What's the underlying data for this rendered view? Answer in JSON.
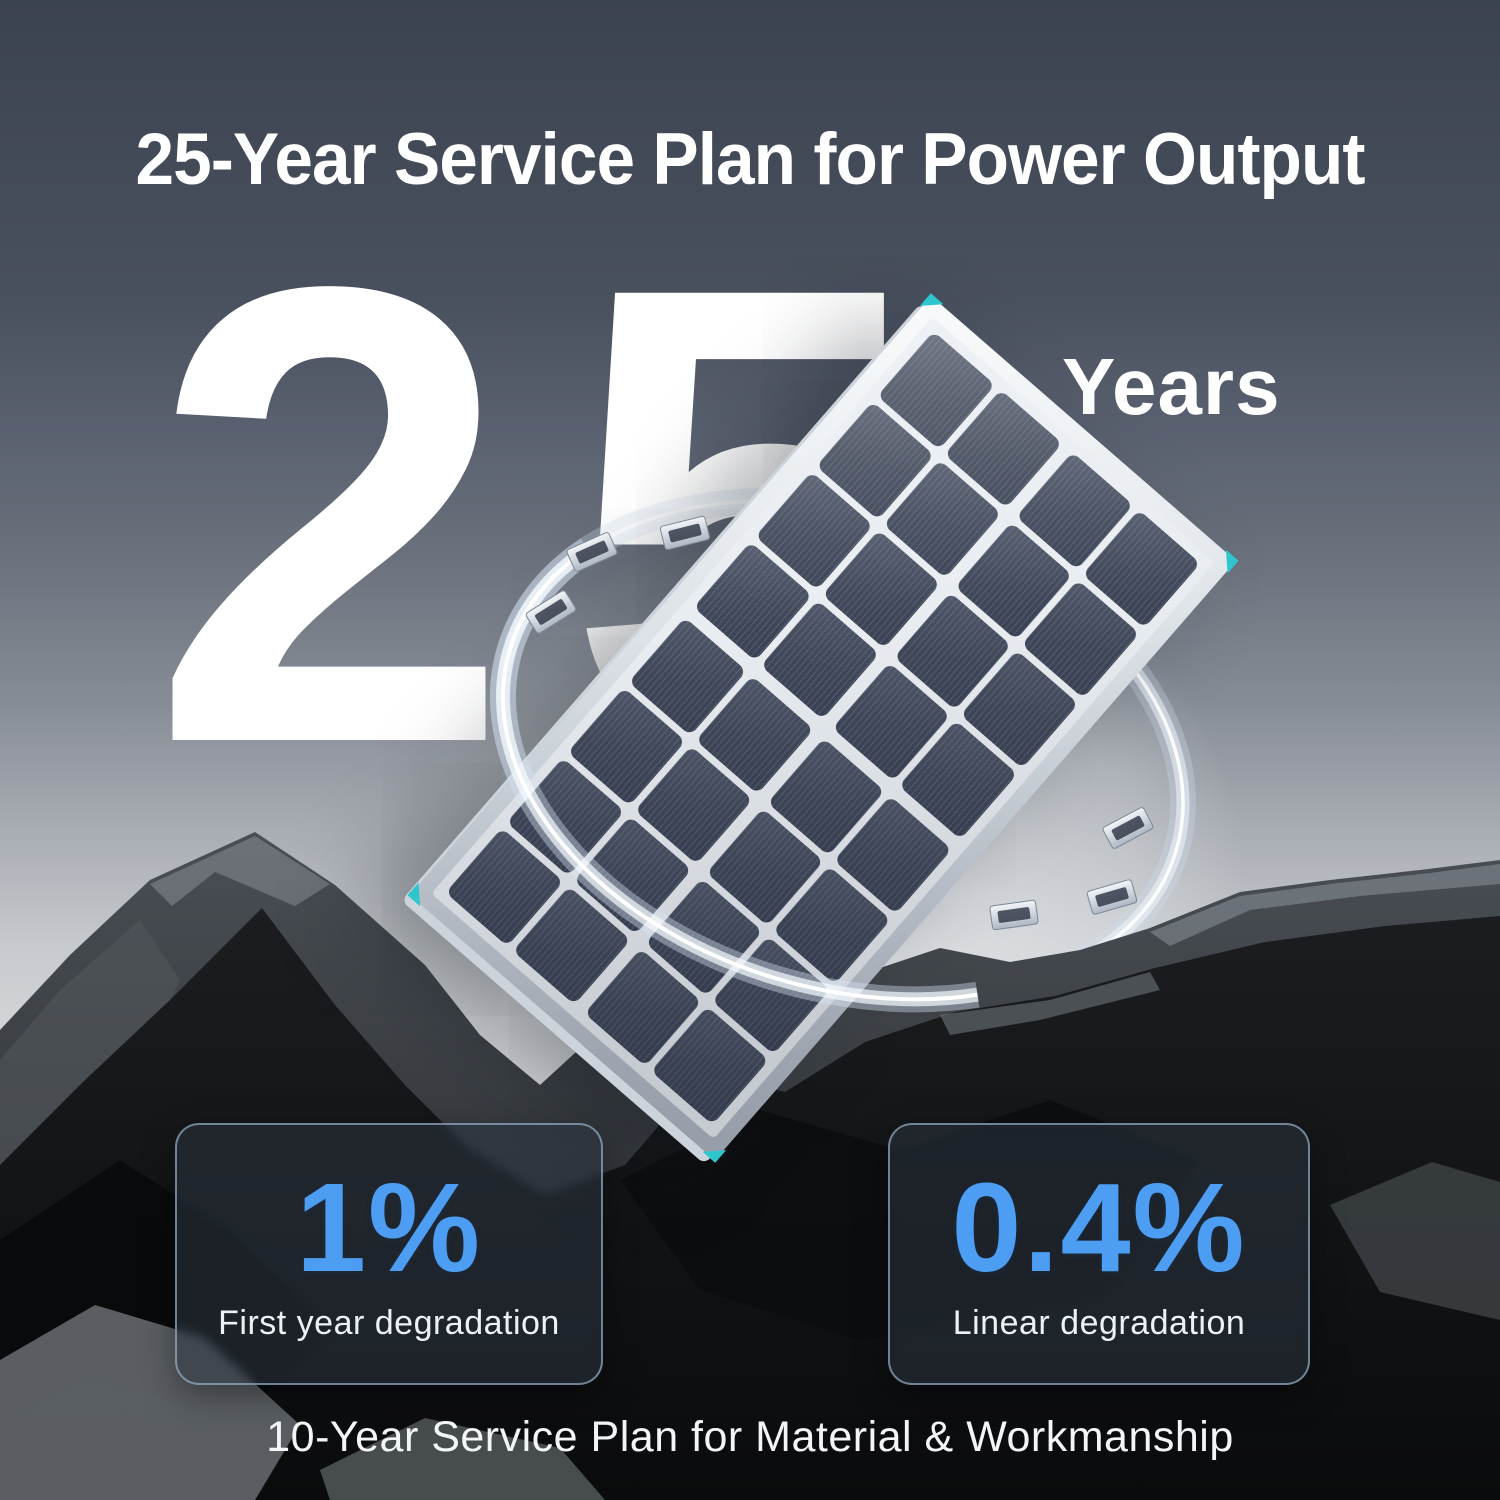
{
  "headline": "25-Year Service Plan for Power Output",
  "hero": {
    "number": "25",
    "unit": "Years"
  },
  "stats": [
    {
      "value": "1%",
      "label": "First year degradation"
    },
    {
      "value": "0.4%",
      "label": "Linear degradation"
    }
  ],
  "footnote": "10-Year Service Plan for Material & Workmanship",
  "colors": {
    "accent_blue": "#4d9ef3",
    "teal_corner_accent": "#2ec6cc",
    "headline_white": "#ffffff",
    "sky_top": "#3b4250",
    "sky_light": "#e6e7e8",
    "rock_dark": "#0c0d0f",
    "card_border": "#a9c4de"
  },
  "illustration": {
    "description": "Tilted monocrystalline solar panel encircled by a transparent glass ring with metal clasps, standing on dark rocks"
  }
}
